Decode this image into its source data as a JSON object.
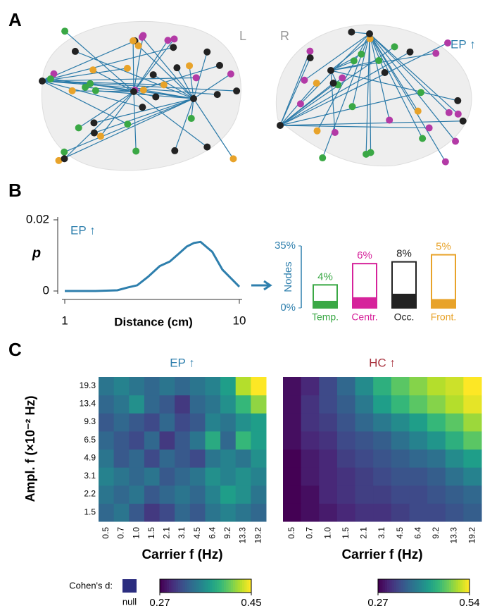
{
  "figure": {
    "panel_labels": [
      "A",
      "B",
      "C"
    ]
  },
  "brain": {
    "left_label": "L",
    "right_label": "R",
    "contrast": "EP ↑"
  },
  "chart_data": [
    {
      "type": "line",
      "annotation": "EP ↑",
      "xlabel": "Distance (cm)",
      "ylabel": "p",
      "log_x": true,
      "color": "#2e7fad",
      "x": [
        1,
        1.5,
        2,
        2.3,
        2.6,
        3,
        3.5,
        4,
        4.5,
        5,
        5.5,
        6,
        7,
        8,
        10
      ],
      "values": [
        0,
        0,
        0.0002,
        0.001,
        0.0016,
        0.004,
        0.007,
        0.0083,
        0.0105,
        0.0125,
        0.0135,
        0.0138,
        0.011,
        0.006,
        0.0012
      ],
      "xlim": [
        1,
        10
      ],
      "xticks": [
        1,
        10
      ],
      "ylim": [
        0,
        0.02
      ],
      "yticks": [
        0,
        0.02
      ]
    },
    {
      "type": "bar",
      "ylabel": "Nodes",
      "categories": [
        "Temp.",
        "Centr.",
        "Occ.",
        "Front."
      ],
      "colors": [
        "#3aa845",
        "#d6239b",
        "#222222",
        "#e8a32a"
      ],
      "series": [
        {
          "values": [
            13,
            25,
            26,
            30
          ]
        },
        {
          "values": [
            4,
            6,
            8,
            5
          ],
          "value_labels": [
            "4%",
            "6%",
            "8%",
            "5%"
          ]
        }
      ],
      "ylim": [
        0,
        35
      ],
      "yticks": [
        {
          "value": 0,
          "label": "0%"
        },
        {
          "value": 35,
          "label": "35%"
        }
      ]
    },
    {
      "type": "heatmap",
      "title": "EP ↑",
      "title_color": "#2e7fad",
      "xlabel": "Carrier f (Hz)",
      "ylabel": "Ampl. f (×10⁻² Hz)",
      "x": [
        "0.5",
        "0.7",
        "1.0",
        "1.5",
        "2.1",
        "3.1",
        "4.5",
        "6.4",
        "9.2",
        "13.3",
        "19.2"
      ],
      "y": [
        "1.5",
        "2.2",
        "3.1",
        "4.9",
        "6.5",
        "9.3",
        "13.4",
        "19.3"
      ],
      "values": [
        [
          0.33,
          0.34,
          0.32,
          0.3,
          0.31,
          0.33,
          0.32,
          0.34,
          0.35,
          0.34,
          0.33
        ],
        [
          0.34,
          0.33,
          0.34,
          0.32,
          0.33,
          0.34,
          0.33,
          0.35,
          0.37,
          0.36,
          0.34
        ],
        [
          0.35,
          0.34,
          0.33,
          0.34,
          0.32,
          0.33,
          0.34,
          0.36,
          0.35,
          0.36,
          0.35
        ],
        [
          0.34,
          0.32,
          0.33,
          0.31,
          0.33,
          0.32,
          0.31,
          0.34,
          0.35,
          0.34,
          0.36
        ],
        [
          0.33,
          0.32,
          0.31,
          0.33,
          0.3,
          0.32,
          0.34,
          0.38,
          0.33,
          0.39,
          0.37
        ],
        [
          0.32,
          0.33,
          0.32,
          0.31,
          0.33,
          0.31,
          0.32,
          0.35,
          0.34,
          0.36,
          0.37
        ],
        [
          0.33,
          0.34,
          0.36,
          0.33,
          0.32,
          0.3,
          0.33,
          0.34,
          0.36,
          0.39,
          0.42
        ],
        [
          0.34,
          0.35,
          0.34,
          0.33,
          0.34,
          0.33,
          0.34,
          0.35,
          0.37,
          0.43,
          0.45
        ]
      ],
      "clim": [
        0.27,
        0.45
      ],
      "cticks": [
        0.27,
        0.45
      ],
      "colorbar_label": "Cohen's d:",
      "null_label": "null",
      "null_color": "#2b2d7f"
    },
    {
      "type": "heatmap",
      "title": "HC ↑",
      "title_color": "#a8323e",
      "xlabel": "Carrier f (Hz)",
      "x": [
        "0.5",
        "0.7",
        "1.0",
        "1.5",
        "2.1",
        "3.1",
        "4.5",
        "6.4",
        "9.2",
        "13.3",
        "19.2"
      ],
      "values": [
        [
          0.27,
          0.28,
          0.29,
          0.3,
          0.31,
          0.31,
          0.32,
          0.33,
          0.33,
          0.34,
          0.35
        ],
        [
          0.27,
          0.28,
          0.3,
          0.31,
          0.32,
          0.32,
          0.33,
          0.33,
          0.34,
          0.35,
          0.36
        ],
        [
          0.27,
          0.29,
          0.3,
          0.31,
          0.32,
          0.33,
          0.34,
          0.34,
          0.35,
          0.37,
          0.39
        ],
        [
          0.27,
          0.29,
          0.3,
          0.32,
          0.33,
          0.34,
          0.35,
          0.36,
          0.37,
          0.4,
          0.42
        ],
        [
          0.28,
          0.3,
          0.31,
          0.33,
          0.34,
          0.35,
          0.37,
          0.39,
          0.41,
          0.44,
          0.47
        ],
        [
          0.28,
          0.31,
          0.32,
          0.34,
          0.36,
          0.38,
          0.4,
          0.42,
          0.45,
          0.47,
          0.5
        ],
        [
          0.28,
          0.31,
          0.33,
          0.35,
          0.38,
          0.42,
          0.45,
          0.47,
          0.49,
          0.51,
          0.53
        ],
        [
          0.28,
          0.3,
          0.33,
          0.36,
          0.4,
          0.44,
          0.47,
          0.49,
          0.51,
          0.52,
          0.54
        ]
      ],
      "clim": [
        0.27,
        0.54
      ],
      "cticks": [
        0.27,
        0.54
      ]
    }
  ]
}
